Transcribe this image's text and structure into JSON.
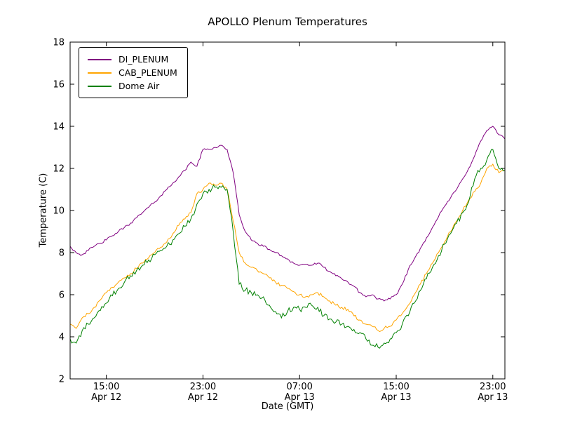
{
  "chart_data": {
    "type": "line",
    "title": "APOLLO Plenum Temperatures",
    "xlabel": "Date (GMT)",
    "ylabel": "Temperature (C)",
    "ylim": [
      2,
      18
    ],
    "yticks": [
      2,
      4,
      6,
      8,
      10,
      12,
      14,
      16,
      18
    ],
    "grid": false,
    "legend_position": "upper left",
    "x_unit": "hours since Apr 12 12:00 GMT",
    "xlim_hours": [
      0,
      36
    ],
    "x_start": 0,
    "x_step": 0.5,
    "xticks": [
      {
        "pos": 3,
        "time": "15:00",
        "date": "Apr 12"
      },
      {
        "pos": 11,
        "time": "23:00",
        "date": "Apr 12"
      },
      {
        "pos": 19,
        "time": "07:00",
        "date": "Apr 13"
      },
      {
        "pos": 27,
        "time": "15:00",
        "date": "Apr 13"
      },
      {
        "pos": 35,
        "time": "23:00",
        "date": "Apr 13"
      }
    ],
    "series": [
      {
        "name": "DI_PLENUM",
        "color": "#800080",
        "noise": 0.06,
        "values": [
          8.3,
          8.0,
          7.9,
          8.1,
          8.3,
          8.45,
          8.6,
          8.8,
          9.0,
          9.2,
          9.4,
          9.65,
          9.9,
          10.15,
          10.4,
          10.7,
          11.0,
          11.3,
          11.6,
          11.9,
          12.3,
          12.1,
          12.9,
          12.9,
          13.0,
          13.1,
          12.9,
          11.8,
          9.8,
          9.0,
          8.6,
          8.45,
          8.3,
          8.15,
          8.0,
          7.85,
          7.7,
          7.5,
          7.4,
          7.45,
          7.4,
          7.5,
          7.3,
          7.1,
          6.9,
          6.75,
          6.6,
          6.4,
          6.1,
          5.9,
          6.0,
          5.8,
          5.7,
          5.8,
          6.0,
          6.5,
          7.2,
          7.7,
          8.2,
          8.7,
          9.2,
          9.7,
          10.2,
          10.6,
          11.0,
          11.5,
          12.0,
          12.6,
          13.3,
          13.8,
          14.0,
          13.6,
          13.4
        ]
      },
      {
        "name": "CAB_PLENUM",
        "color": "#FFA500",
        "noise": 0.08,
        "values": [
          4.6,
          4.4,
          4.9,
          5.1,
          5.4,
          5.75,
          6.1,
          6.35,
          6.6,
          6.8,
          7.0,
          7.25,
          7.5,
          7.75,
          8.0,
          8.25,
          8.5,
          8.9,
          9.3,
          9.6,
          9.9,
          10.8,
          11.0,
          11.3,
          11.2,
          11.3,
          11.0,
          9.5,
          8.0,
          7.5,
          7.3,
          7.15,
          7.0,
          6.8,
          6.6,
          6.45,
          6.3,
          6.15,
          6.0,
          5.9,
          6.0,
          6.1,
          5.9,
          5.7,
          5.5,
          5.4,
          5.3,
          5.0,
          4.8,
          4.6,
          4.5,
          4.3,
          4.4,
          4.5,
          4.8,
          5.1,
          5.5,
          6.0,
          6.5,
          7.0,
          7.5,
          8.0,
          8.5,
          9.0,
          9.5,
          10.0,
          10.5,
          10.9,
          11.3,
          12.0,
          12.2,
          11.8,
          11.9
        ]
      },
      {
        "name": "Dome Air",
        "color": "#008000",
        "noise": 0.15,
        "values": [
          3.9,
          3.7,
          4.3,
          4.6,
          4.9,
          5.25,
          5.6,
          5.95,
          6.3,
          6.6,
          6.9,
          7.15,
          7.4,
          7.65,
          7.9,
          8.1,
          8.3,
          8.6,
          8.9,
          9.25,
          9.6,
          10.3,
          10.8,
          11.0,
          11.1,
          11.1,
          11.0,
          9.0,
          6.5,
          6.2,
          6.1,
          6.0,
          5.9,
          5.5,
          5.2,
          4.9,
          5.2,
          5.4,
          5.3,
          5.4,
          5.5,
          5.4,
          5.0,
          4.85,
          4.7,
          4.6,
          4.5,
          4.35,
          4.2,
          3.9,
          3.6,
          3.5,
          3.7,
          3.9,
          4.2,
          4.6,
          5.0,
          5.6,
          6.2,
          6.75,
          7.3,
          7.85,
          8.4,
          8.9,
          9.4,
          9.9,
          10.4,
          11.5,
          12.0,
          12.4,
          12.9,
          12.0,
          11.9
        ]
      }
    ]
  }
}
